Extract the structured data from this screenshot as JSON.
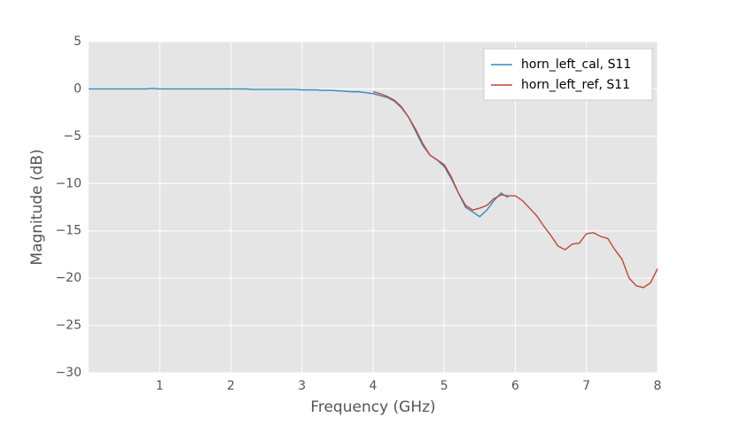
{
  "chart_data": {
    "type": "line",
    "x_label": "Frequency (GHz)",
    "y_label": "Magnitude (dB)",
    "x": [
      0,
      0.1,
      0.2,
      0.3,
      0.4,
      0.5,
      0.6,
      0.7,
      0.8,
      0.9,
      1,
      1.1,
      1.2,
      1.3,
      1.4,
      1.5,
      1.6,
      1.7,
      1.8,
      1.9,
      2,
      2.1,
      2.2,
      2.3,
      2.4,
      2.5,
      2.6,
      2.7,
      2.8,
      2.9,
      3,
      3.1,
      3.2,
      3.3,
      3.4,
      3.5,
      3.6,
      3.7,
      3.8,
      3.9,
      4,
      4.1,
      4.2,
      4.3,
      4.4,
      4.5,
      4.6,
      4.7,
      4.8,
      4.9,
      5,
      5.1,
      5.2,
      5.3,
      5.4,
      5.5,
      5.6,
      5.7,
      5.8,
      5.9,
      6,
      6.1,
      6.2,
      6.3,
      6.4,
      6.5,
      6.6,
      6.7,
      6.8,
      6.9,
      7,
      7.1,
      7.2,
      7.3,
      7.4,
      7.5,
      7.6,
      7.7,
      7.8,
      7.9,
      8
    ],
    "series": [
      {
        "name": "horn_left_cal, S11",
        "color": "#348abd",
        "values": [
          0,
          0,
          0,
          0,
          0,
          0,
          0,
          0,
          0,
          0.05,
          0,
          0,
          0,
          0,
          0,
          0,
          0,
          0,
          0,
          0,
          0,
          0,
          0,
          -0.05,
          -0.05,
          -0.05,
          -0.05,
          -0.05,
          -0.05,
          -0.05,
          -0.1,
          -0.1,
          -0.1,
          -0.15,
          -0.15,
          -0.2,
          -0.25,
          -0.3,
          -0.3,
          -0.4,
          -0.5,
          -0.7,
          -0.9,
          -1.3,
          -2.0,
          -3.0,
          -4.5,
          -6.0,
          -7.0,
          -7.5,
          -8.2,
          -9.5,
          -11.0,
          -12.5,
          -13.0,
          -13.5,
          -12.8,
          -11.8,
          -11.0,
          -11.5,
          null,
          null,
          null,
          null,
          null,
          null,
          null,
          null,
          null,
          null,
          null,
          null,
          null,
          null,
          null,
          null,
          null,
          null,
          null,
          null,
          null
        ]
      },
      {
        "name": "horn_left_ref, S11",
        "color": "#c0473a",
        "values": [
          null,
          null,
          null,
          null,
          null,
          null,
          null,
          null,
          null,
          null,
          null,
          null,
          null,
          null,
          null,
          null,
          null,
          null,
          null,
          null,
          null,
          null,
          null,
          null,
          null,
          null,
          null,
          null,
          null,
          null,
          null,
          null,
          null,
          null,
          null,
          null,
          null,
          null,
          null,
          null,
          -0.3,
          -0.5,
          -0.8,
          -1.2,
          -1.9,
          -3.0,
          -4.3,
          -5.8,
          -7.0,
          -7.5,
          -8.0,
          -9.3,
          -11.0,
          -12.3,
          -12.8,
          -12.6,
          -12.3,
          -11.6,
          -11.2,
          -11.3,
          -11.3,
          -11.8,
          -12.6,
          -13.4,
          -14.5,
          -15.5,
          -16.6,
          -17.0,
          -16.4,
          -16.3,
          -15.3,
          -15.2,
          -15.6,
          -15.8,
          -17.0,
          -18.0,
          -20.0,
          -20.8,
          -21.0,
          -20.5,
          -19.0
        ]
      }
    ],
    "xlim": [
      0,
      8
    ],
    "xticks": [
      1,
      2,
      3,
      4,
      5,
      6,
      7,
      8
    ],
    "ylim": [
      -30,
      5
    ],
    "yticks": [
      {
        "value": -30,
        "label": "−30"
      },
      {
        "value": -25,
        "label": "−25"
      },
      {
        "value": -20,
        "label": "−20"
      },
      {
        "value": -15,
        "label": "−15"
      },
      {
        "value": -10,
        "label": "−10"
      },
      {
        "value": -5,
        "label": "−5"
      },
      0,
      5
    ],
    "grid": true,
    "legend_loc": "upper right"
  }
}
